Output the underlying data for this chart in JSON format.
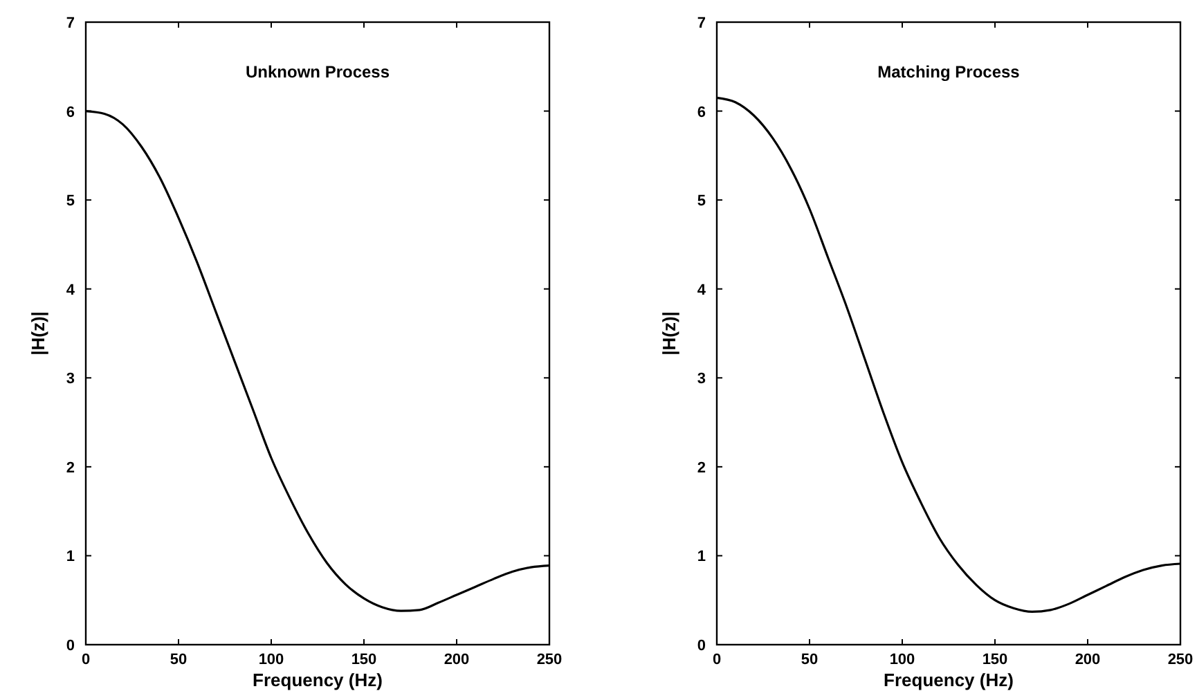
{
  "chart_data": [
    {
      "type": "line",
      "title": "Unknown Process",
      "xlabel": "Frequency (Hz)",
      "ylabel": "|H(z)|",
      "x": [
        0,
        10,
        20,
        30,
        40,
        50,
        60,
        70,
        80,
        90,
        100,
        110,
        120,
        130,
        140,
        150,
        160,
        170,
        180,
        190,
        200,
        210,
        220,
        230,
        240,
        250
      ],
      "series": [
        {
          "color": "#000000",
          "values": [
            6.0,
            5.97,
            5.85,
            5.6,
            5.25,
            4.8,
            4.3,
            3.75,
            3.2,
            2.65,
            2.1,
            1.65,
            1.25,
            0.92,
            0.68,
            0.52,
            0.42,
            0.38,
            0.39,
            0.47,
            0.56,
            0.65,
            0.74,
            0.82,
            0.87,
            0.89
          ]
        }
      ],
      "xlim": [
        0,
        250
      ],
      "xticks": [
        0,
        50,
        100,
        150,
        200,
        250
      ],
      "ylim": [
        0,
        7
      ],
      "yticks": [
        0,
        1,
        2,
        3,
        4,
        5,
        6,
        7
      ],
      "grid": false,
      "marker": "none",
      "line_style": "solid"
    },
    {
      "type": "line",
      "title": "Matching Process",
      "xlabel": "Frequency (Hz)",
      "ylabel": "|H(z)|",
      "x": [
        0,
        10,
        20,
        30,
        40,
        50,
        60,
        70,
        80,
        90,
        100,
        110,
        120,
        130,
        140,
        150,
        160,
        170,
        180,
        190,
        200,
        210,
        220,
        230,
        240,
        250
      ],
      "series": [
        {
          "color": "#000000",
          "values": [
            6.15,
            6.1,
            5.95,
            5.7,
            5.35,
            4.9,
            4.35,
            3.8,
            3.2,
            2.6,
            2.05,
            1.6,
            1.2,
            0.9,
            0.67,
            0.5,
            0.41,
            0.37,
            0.39,
            0.46,
            0.56,
            0.66,
            0.76,
            0.84,
            0.89,
            0.91
          ]
        }
      ],
      "xlim": [
        0,
        250
      ],
      "xticks": [
        0,
        50,
        100,
        150,
        200,
        250
      ],
      "ylim": [
        0,
        7
      ],
      "yticks": [
        0,
        1,
        2,
        3,
        4,
        5,
        6,
        7
      ],
      "grid": false,
      "marker": "none",
      "line_style": "solid"
    }
  ]
}
